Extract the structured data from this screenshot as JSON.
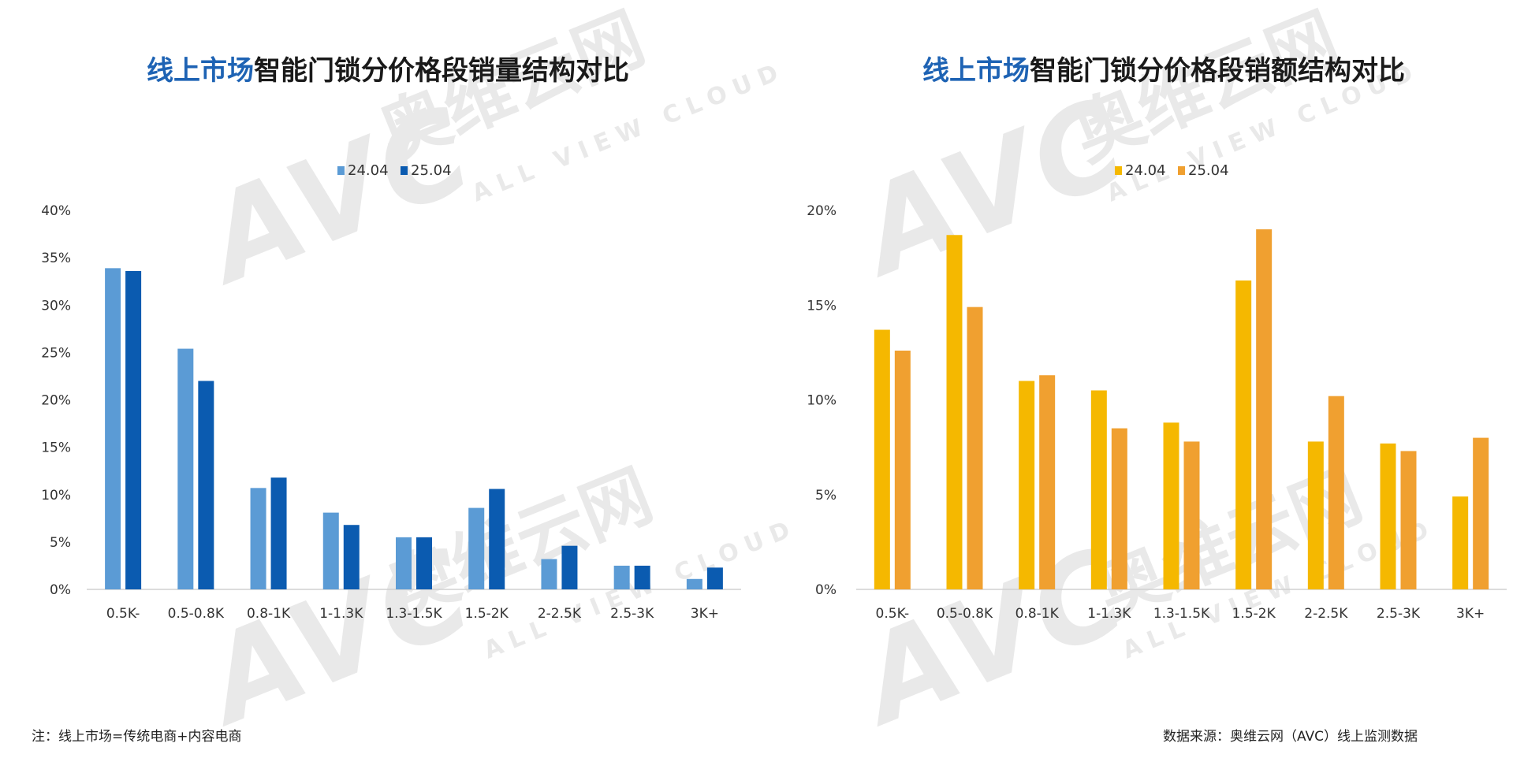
{
  "watermark": {
    "brand": "AVC",
    "cn": "奥维云网",
    "sub": "ALL VIEW CLOUD"
  },
  "charts": [
    {
      "title_highlight": "线上市场",
      "title_rest": "智能门锁分价格段销量结构对比"
    },
    {
      "title_highlight": "线上市场",
      "title_rest": "智能门锁分价格段销额结构对比"
    }
  ],
  "chart_data": [
    {
      "type": "bar",
      "title": "线上市场智能门锁分价格段销量结构对比",
      "categories": [
        "0.5K-",
        "0.5-0.8K",
        "0.8-1K",
        "1-1.3K",
        "1.3-1.5K",
        "1.5-2K",
        "2-2.5K",
        "2.5-3K",
        "3K+"
      ],
      "series": [
        {
          "name": "24.04",
          "color": "#5b9bd5",
          "values": [
            33.9,
            25.4,
            10.7,
            8.1,
            5.5,
            8.6,
            3.2,
            2.5,
            1.1
          ]
        },
        {
          "name": "25.04",
          "color": "#0b5bb0",
          "values": [
            33.6,
            22.0,
            11.8,
            6.8,
            5.5,
            10.6,
            4.6,
            2.5,
            2.3
          ]
        }
      ],
      "yticks": [
        "0%",
        "5%",
        "10%",
        "15%",
        "20%",
        "25%",
        "30%",
        "35%",
        "40%"
      ],
      "ylim": [
        0,
        40
      ],
      "legend_position": "top-center",
      "grid": false
    },
    {
      "type": "bar",
      "title": "线上市场智能门锁分价格段销额结构对比",
      "categories": [
        "0.5K-",
        "0.5-0.8K",
        "0.8-1K",
        "1-1.3K",
        "1.3-1.5K",
        "1.5-2K",
        "2-2.5K",
        "2.5-3K",
        "3K+"
      ],
      "series": [
        {
          "name": "24.04",
          "color": "#f5b800",
          "values": [
            13.7,
            18.7,
            11.0,
            10.5,
            8.8,
            16.3,
            7.8,
            7.7,
            4.9
          ]
        },
        {
          "name": "25.04",
          "color": "#f0a030",
          "values": [
            12.6,
            14.9,
            11.3,
            8.5,
            7.8,
            19.0,
            10.2,
            7.3,
            8.0
          ]
        }
      ],
      "yticks": [
        "0%",
        "5%",
        "10%",
        "15%",
        "20%"
      ],
      "ylim": [
        0,
        20
      ],
      "legend_position": "top-center",
      "grid": false
    }
  ],
  "footer": {
    "note": "注：线上市场=传统电商+内容电商",
    "source": "数据来源：奥维云网（AVC）线上监测数据"
  }
}
